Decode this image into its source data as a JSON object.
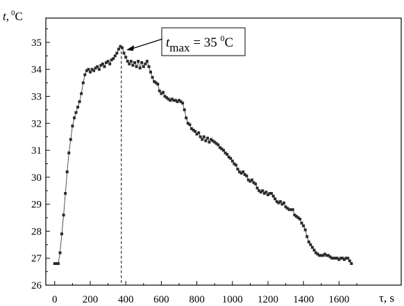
{
  "chart_data": {
    "type": "scatter",
    "title": "",
    "xlabel": "τ, s",
    "ylabel_main": "t,",
    "ylabel_degree": "0",
    "ylabel_unit": "C",
    "xlim": [
      -50,
      1950
    ],
    "ylim": [
      26,
      35.9
    ],
    "grid": false,
    "x_ticks": [
      0,
      200,
      400,
      600,
      800,
      1000,
      1200,
      1400,
      1600
    ],
    "y_ticks": [
      26,
      27,
      28,
      29,
      30,
      31,
      32,
      33,
      34,
      35
    ],
    "marker_color": "#2b2b2b",
    "annotation": {
      "label_t": "t",
      "label_sub": "max",
      "label_eq": " = 35 ",
      "label_deg": "0",
      "label_unit": "C",
      "x": 375,
      "y": 34.85
    },
    "series": [
      {
        "name": "",
        "points": [
          [
            0,
            26.8
          ],
          [
            10,
            26.8
          ],
          [
            20,
            26.8
          ],
          [
            30,
            27.2
          ],
          [
            40,
            27.9
          ],
          [
            50,
            28.6
          ],
          [
            60,
            29.4
          ],
          [
            70,
            30.2
          ],
          [
            80,
            30.9
          ],
          [
            90,
            31.4
          ],
          [
            100,
            31.9
          ],
          [
            110,
            32.2
          ],
          [
            120,
            32.4
          ],
          [
            130,
            32.6
          ],
          [
            140,
            32.8
          ],
          [
            150,
            33.1
          ],
          [
            160,
            33.5
          ],
          [
            170,
            33.8
          ],
          [
            180,
            33.95
          ],
          [
            190,
            34.0
          ],
          [
            200,
            33.9
          ],
          [
            210,
            34.0
          ],
          [
            220,
            33.95
          ],
          [
            230,
            34.05
          ],
          [
            240,
            34.1
          ],
          [
            250,
            34.0
          ],
          [
            260,
            34.15
          ],
          [
            270,
            34.2
          ],
          [
            280,
            34.1
          ],
          [
            290,
            34.25
          ],
          [
            300,
            34.3
          ],
          [
            310,
            34.2
          ],
          [
            320,
            34.35
          ],
          [
            330,
            34.4
          ],
          [
            340,
            34.5
          ],
          [
            350,
            34.6
          ],
          [
            360,
            34.75
          ],
          [
            370,
            34.85
          ],
          [
            380,
            34.8
          ],
          [
            390,
            34.6
          ],
          [
            400,
            34.45
          ],
          [
            410,
            34.3
          ],
          [
            420,
            34.2
          ],
          [
            430,
            34.3
          ],
          [
            440,
            34.15
          ],
          [
            450,
            34.25
          ],
          [
            460,
            34.1
          ],
          [
            470,
            34.3
          ],
          [
            480,
            34.05
          ],
          [
            490,
            34.25
          ],
          [
            500,
            34.1
          ],
          [
            510,
            34.2
          ],
          [
            520,
            34.3
          ],
          [
            530,
            34.1
          ],
          [
            540,
            33.9
          ],
          [
            550,
            33.7
          ],
          [
            560,
            33.55
          ],
          [
            570,
            33.5
          ],
          [
            580,
            33.45
          ],
          [
            590,
            33.2
          ],
          [
            600,
            33.1
          ],
          [
            610,
            33.15
          ],
          [
            620,
            33.0
          ],
          [
            630,
            32.95
          ],
          [
            640,
            32.9
          ],
          [
            650,
            32.85
          ],
          [
            660,
            32.9
          ],
          [
            670,
            32.85
          ],
          [
            680,
            32.85
          ],
          [
            690,
            32.8
          ],
          [
            700,
            32.85
          ],
          [
            710,
            32.8
          ],
          [
            720,
            32.75
          ],
          [
            730,
            32.5
          ],
          [
            740,
            32.2
          ],
          [
            750,
            32.0
          ],
          [
            760,
            31.95
          ],
          [
            770,
            31.8
          ],
          [
            780,
            31.75
          ],
          [
            790,
            31.7
          ],
          [
            800,
            31.6
          ],
          [
            810,
            31.65
          ],
          [
            820,
            31.5
          ],
          [
            830,
            31.4
          ],
          [
            840,
            31.5
          ],
          [
            850,
            31.35
          ],
          [
            860,
            31.45
          ],
          [
            870,
            31.3
          ],
          [
            880,
            31.4
          ],
          [
            890,
            31.35
          ],
          [
            900,
            31.3
          ],
          [
            910,
            31.25
          ],
          [
            920,
            31.2
          ],
          [
            930,
            31.1
          ],
          [
            940,
            31.05
          ],
          [
            950,
            31.0
          ],
          [
            960,
            30.9
          ],
          [
            970,
            30.85
          ],
          [
            980,
            30.75
          ],
          [
            990,
            30.7
          ],
          [
            1000,
            30.6
          ],
          [
            1010,
            30.5
          ],
          [
            1020,
            30.45
          ],
          [
            1030,
            30.3
          ],
          [
            1040,
            30.2
          ],
          [
            1050,
            30.15
          ],
          [
            1060,
            30.2
          ],
          [
            1070,
            30.1
          ],
          [
            1080,
            30.05
          ],
          [
            1090,
            29.9
          ],
          [
            1100,
            29.85
          ],
          [
            1110,
            29.9
          ],
          [
            1120,
            29.8
          ],
          [
            1130,
            29.75
          ],
          [
            1140,
            29.6
          ],
          [
            1150,
            29.5
          ],
          [
            1160,
            29.45
          ],
          [
            1170,
            29.5
          ],
          [
            1180,
            29.4
          ],
          [
            1190,
            29.45
          ],
          [
            1200,
            29.35
          ],
          [
            1210,
            29.4
          ],
          [
            1220,
            29.4
          ],
          [
            1230,
            29.3
          ],
          [
            1240,
            29.2
          ],
          [
            1250,
            29.1
          ],
          [
            1260,
            29.05
          ],
          [
            1270,
            29.1
          ],
          [
            1280,
            29.0
          ],
          [
            1290,
            29.05
          ],
          [
            1300,
            28.9
          ],
          [
            1310,
            28.85
          ],
          [
            1320,
            28.8
          ],
          [
            1330,
            28.8
          ],
          [
            1340,
            28.8
          ],
          [
            1350,
            28.6
          ],
          [
            1360,
            28.55
          ],
          [
            1370,
            28.5
          ],
          [
            1380,
            28.45
          ],
          [
            1390,
            28.3
          ],
          [
            1400,
            28.2
          ],
          [
            1410,
            28.05
          ],
          [
            1420,
            27.8
          ],
          [
            1430,
            27.6
          ],
          [
            1440,
            27.5
          ],
          [
            1450,
            27.4
          ],
          [
            1460,
            27.3
          ],
          [
            1470,
            27.2
          ],
          [
            1480,
            27.15
          ],
          [
            1490,
            27.1
          ],
          [
            1500,
            27.1
          ],
          [
            1510,
            27.1
          ],
          [
            1520,
            27.15
          ],
          [
            1530,
            27.1
          ],
          [
            1540,
            27.1
          ],
          [
            1550,
            27.05
          ],
          [
            1560,
            27.0
          ],
          [
            1570,
            27.0
          ],
          [
            1580,
            27.0
          ],
          [
            1590,
            27.0
          ],
          [
            1600,
            26.95
          ],
          [
            1610,
            27.0
          ],
          [
            1620,
            27.0
          ],
          [
            1630,
            26.95
          ],
          [
            1640,
            27.0
          ],
          [
            1650,
            27.0
          ],
          [
            1660,
            26.9
          ],
          [
            1670,
            26.8
          ]
        ]
      }
    ]
  }
}
